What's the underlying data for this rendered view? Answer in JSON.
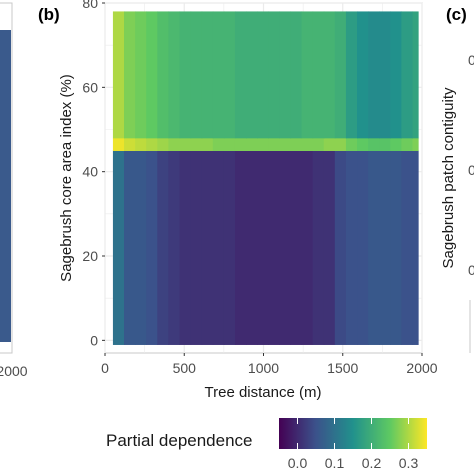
{
  "colors": {
    "panel_border": "#c8c8c8",
    "panel_grid": "#ebebeb",
    "viridis": [
      "#440154",
      "#3b528b",
      "#21918c",
      "#5ec962",
      "#fde725"
    ]
  },
  "panels": {
    "a": {
      "tick_label": "2000"
    },
    "b": {
      "label": "(b)"
    },
    "c": {
      "label": "(c)",
      "ylabel": "Sagebrush patch contiguity",
      "tick_labels": [
        "0",
        "0",
        "0"
      ]
    }
  },
  "legend": {
    "title": "Partial dependence",
    "position": "bottom"
  },
  "chart_data": [
    {
      "type": "heatmap",
      "panel": "b",
      "xlabel": "Tree distance (m)",
      "ylabel": "Sagebrush core area index (%)",
      "xlim": [
        0,
        2000
      ],
      "ylim": [
        -3,
        80
      ],
      "x_ticks": [
        0,
        500,
        1000,
        1500,
        2000
      ],
      "x_tick_labels": [
        "0",
        "500",
        "1000",
        "1500",
        "2000"
      ],
      "y_ticks": [
        0,
        20,
        40,
        60,
        80
      ],
      "y_tick_labels": [
        "0",
        "20",
        "40",
        "60",
        "80"
      ],
      "grid": true,
      "x_bins": [
        50,
        120,
        190,
        260,
        330,
        400,
        470,
        540,
        610,
        680,
        750,
        820,
        890,
        960,
        1030,
        1100,
        1170,
        1240,
        1310,
        1380,
        1450,
        1520,
        1590,
        1660,
        1730,
        1800,
        1870,
        1940,
        1975
      ],
      "y_bins": [
        -1,
        45,
        48,
        78
      ],
      "values": [
        [
          0.1,
          0.06,
          0.06,
          0.05,
          0.03,
          0.02,
          0.01,
          0.01,
          0.01,
          0.01,
          0.01,
          0.0,
          0.0,
          0.0,
          0.0,
          0.0,
          0.0,
          0.0,
          0.01,
          0.01,
          0.04,
          0.05,
          0.05,
          0.06,
          0.06,
          0.06,
          0.05,
          0.05
        ],
        [
          0.34,
          0.32,
          0.31,
          0.3,
          0.29,
          0.28,
          0.28,
          0.28,
          0.28,
          0.27,
          0.27,
          0.27,
          0.27,
          0.27,
          0.27,
          0.27,
          0.27,
          0.27,
          0.27,
          0.28,
          0.28,
          0.26,
          0.25,
          0.24,
          0.24,
          0.25,
          0.26,
          0.27
        ],
        [
          0.3,
          0.27,
          0.26,
          0.25,
          0.23,
          0.22,
          0.21,
          0.21,
          0.21,
          0.21,
          0.21,
          0.2,
          0.2,
          0.2,
          0.2,
          0.2,
          0.2,
          0.21,
          0.21,
          0.21,
          0.2,
          0.17,
          0.15,
          0.14,
          0.14,
          0.15,
          0.17,
          0.18
        ]
      ],
      "colorbar": {
        "min": -0.05,
        "max": 0.35,
        "ticks": [
          0.0,
          0.1,
          0.2,
          0.3
        ],
        "tick_labels": [
          "0.0",
          "0.1",
          "0.2",
          "0.3"
        ]
      }
    }
  ]
}
